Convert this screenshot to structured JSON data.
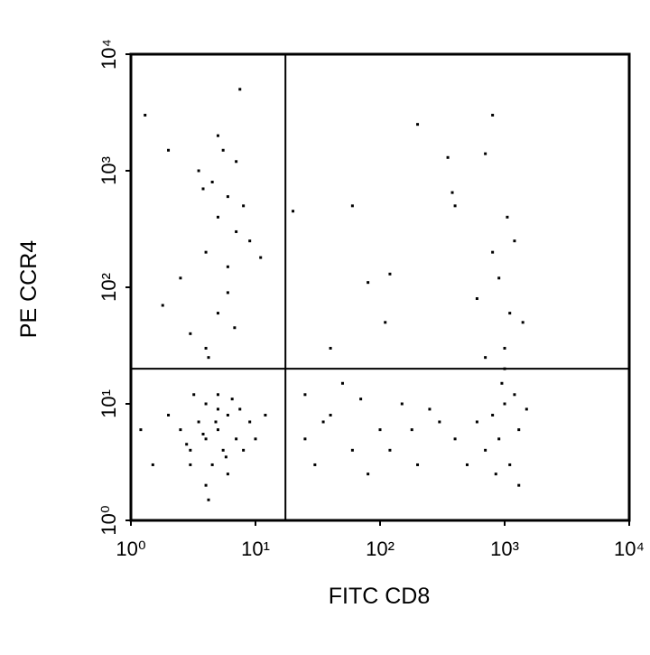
{
  "chart_data": {
    "type": "scatter",
    "x_label": "FITC CD8",
    "y_label": "PE CCR4",
    "xscale": "log",
    "yscale": "log",
    "xlim": [
      1,
      10000
    ],
    "ylim": [
      1,
      10000
    ],
    "xticks": [
      {
        "value": 1,
        "label": "10⁰"
      },
      {
        "value": 10,
        "label": "10¹"
      },
      {
        "value": 100,
        "label": "10²"
      },
      {
        "value": 1000,
        "label": "10³"
      },
      {
        "value": 10000,
        "label": "10⁴"
      }
    ],
    "yticks": [
      {
        "value": 1,
        "label": "10⁰"
      },
      {
        "value": 10,
        "label": "10¹"
      },
      {
        "value": 100,
        "label": "10²"
      },
      {
        "value": 1000,
        "label": "10³"
      },
      {
        "value": 10000,
        "label": "10⁴"
      }
    ],
    "quadrant_lines": {
      "x": 17.4,
      "y": 20
    },
    "color": "#000000",
    "x": [
      4,
      5,
      3,
      6,
      4.5,
      5.5,
      3.5,
      7,
      4,
      5,
      2.5,
      8,
      3,
      6,
      4,
      5,
      2,
      9,
      3.2,
      6.5,
      4.8,
      5.8,
      3.8,
      7.5,
      2.8,
      1.5,
      1.2,
      10,
      12,
      4.2,
      4,
      5,
      6,
      5,
      6,
      4.5,
      7,
      3.5,
      5.5,
      4,
      6,
      3,
      8,
      5,
      7,
      2.5,
      4.2,
      6.8,
      9,
      3.8,
      1.3,
      2,
      7.5,
      1.8,
      11,
      800,
      1000,
      900,
      1200,
      700,
      1100,
      950,
      600,
      1300,
      850,
      1000,
      1100,
      900,
      1200,
      800,
      1050,
      1000,
      700,
      1400,
      600,
      1500,
      1300,
      25,
      40,
      60,
      100,
      150,
      200,
      300,
      25,
      50,
      80,
      120,
      250,
      400,
      30,
      70,
      180,
      500,
      35,
      200,
      800,
      350,
      700,
      60,
      400,
      120,
      80,
      40,
      380,
      20,
      110
    ],
    "y": [
      5,
      6,
      4,
      8,
      3,
      4,
      7,
      5,
      10,
      12,
      6,
      4,
      3,
      2.5,
      2,
      9,
      8,
      7,
      12,
      11,
      7,
      3.5,
      5.5,
      9,
      4.5,
      3,
      6,
      5,
      8,
      1.5,
      30,
      60,
      150,
      400,
      600,
      800,
      300,
      1000,
      1500,
      200,
      90,
      40,
      500,
      2000,
      1200,
      120,
      25,
      45,
      250,
      700,
      3000,
      1500,
      5000,
      70,
      180,
      8,
      10,
      5,
      12,
      4,
      3,
      15,
      7,
      6,
      2.5,
      30,
      60,
      120,
      250,
      200,
      400,
      20,
      25,
      50,
      80,
      9,
      2,
      5,
      8,
      4,
      6,
      10,
      3,
      7,
      12,
      15,
      2.5,
      4,
      9,
      5,
      3,
      11,
      6,
      3,
      7,
      2500,
      3000,
      1300,
      1400,
      500,
      500,
      130,
      110,
      30,
      650,
      450,
      50
    ]
  }
}
